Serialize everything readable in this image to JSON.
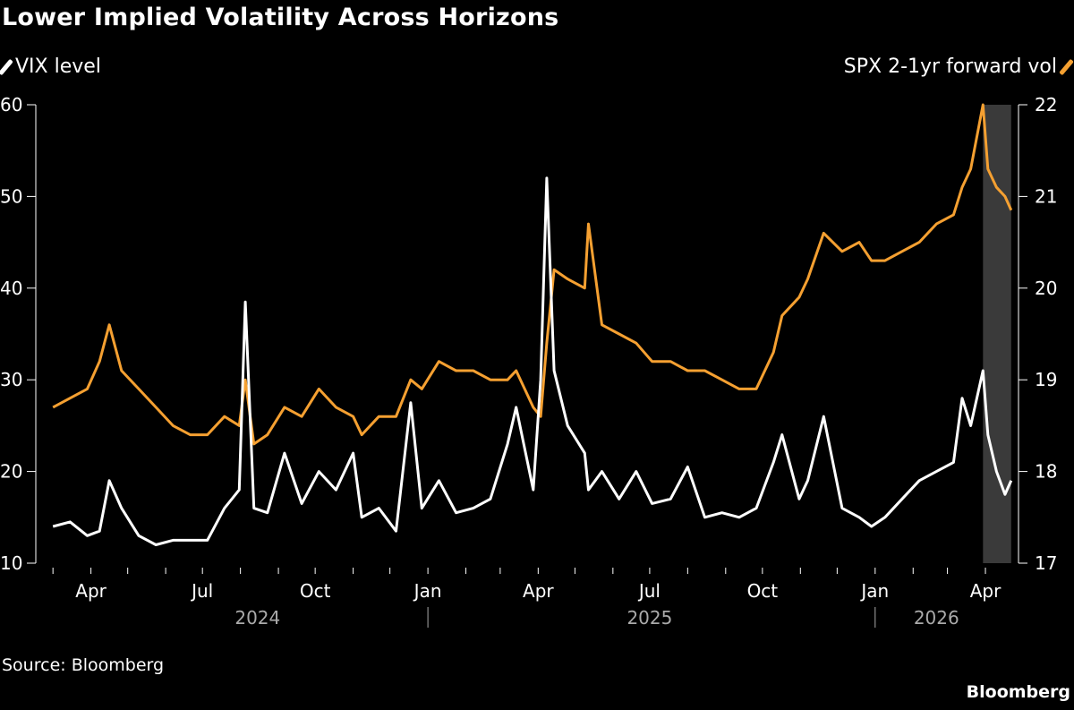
{
  "chart_data": {
    "type": "line",
    "title": "Lower Implied Volatility Across Horizons",
    "source": "Source: Bloomberg",
    "brand": "Bloomberg",
    "legend_placement": "top",
    "grid": false,
    "x_range": [
      "2024-02-16",
      "2026-04-28"
    ],
    "x_ticks": [
      {
        "date": "2024-04-01",
        "label": "Apr"
      },
      {
        "date": "2024-07-01",
        "label": "Jul"
      },
      {
        "date": "2024-10-01",
        "label": "Oct"
      },
      {
        "date": "2025-01-01",
        "label": "Jan"
      },
      {
        "date": "2025-04-01",
        "label": "Apr"
      },
      {
        "date": "2025-07-01",
        "label": "Jul"
      },
      {
        "date": "2025-10-01",
        "label": "Oct"
      },
      {
        "date": "2026-01-01",
        "label": "Jan"
      },
      {
        "date": "2026-04-01",
        "label": "Apr"
      }
    ],
    "year_labels": [
      {
        "date": "2024-08-15",
        "label": "2024"
      },
      {
        "date": "2025-07-01",
        "label": "2025"
      },
      {
        "date": "2026-02-20",
        "label": "2026"
      }
    ],
    "year_separators": [
      "2025-01-01",
      "2026-01-01"
    ],
    "shaded_region": [
      "2026-03-30",
      "2026-04-22"
    ],
    "shade_color": "#3a3a3a",
    "y_left": {
      "range": [
        10,
        60
      ],
      "ticks": [
        10,
        20,
        30,
        40,
        50,
        60
      ]
    },
    "y_right": {
      "range": [
        17,
        22
      ],
      "ticks": [
        17,
        18,
        19,
        20,
        21,
        22
      ]
    },
    "series": [
      {
        "name": "VIX level",
        "axis": "left",
        "color": "#ffffff"
      },
      {
        "name": "SPX 2-1yr forward vol",
        "axis": "right",
        "color": "#f5a031"
      }
    ],
    "points": [
      [
        "2024-03-01",
        14,
        18.7
      ],
      [
        "2024-03-15",
        14.5,
        18.8
      ],
      [
        "2024-03-29",
        13,
        18.9
      ],
      [
        "2024-04-08",
        13.5,
        19.2
      ],
      [
        "2024-04-16",
        19,
        19.6
      ],
      [
        "2024-04-26",
        16,
        19.1
      ],
      [
        "2024-05-10",
        13,
        18.9
      ],
      [
        "2024-05-24",
        12,
        18.7
      ],
      [
        "2024-06-07",
        12.5,
        18.5
      ],
      [
        "2024-06-21",
        12.5,
        18.4
      ],
      [
        "2024-07-05",
        12.5,
        18.4
      ],
      [
        "2024-07-19",
        16,
        18.6
      ],
      [
        "2024-07-31",
        18,
        18.5
      ],
      [
        "2024-08-05",
        38.5,
        19.0
      ],
      [
        "2024-08-12",
        16,
        18.3
      ],
      [
        "2024-08-23",
        15.5,
        18.4
      ],
      [
        "2024-09-06",
        22,
        18.7
      ],
      [
        "2024-09-20",
        16.5,
        18.6
      ],
      [
        "2024-10-04",
        20,
        18.9
      ],
      [
        "2024-10-18",
        18,
        18.7
      ],
      [
        "2024-11-01",
        22,
        18.6
      ],
      [
        "2024-11-08",
        15,
        18.4
      ],
      [
        "2024-11-22",
        16,
        18.6
      ],
      [
        "2024-12-06",
        13.5,
        18.6
      ],
      [
        "2024-12-18",
        27.5,
        19.0
      ],
      [
        "2024-12-27",
        16,
        18.9
      ],
      [
        "2025-01-10",
        19,
        19.2
      ],
      [
        "2025-01-24",
        15.5,
        19.1
      ],
      [
        "2025-02-07",
        16,
        19.1
      ],
      [
        "2025-02-21",
        17,
        19.0
      ],
      [
        "2025-03-07",
        23,
        19.0
      ],
      [
        "2025-03-14",
        27,
        19.1
      ],
      [
        "2025-03-28",
        18,
        18.7
      ],
      [
        "2025-04-03",
        30,
        18.6
      ],
      [
        "2025-04-08",
        52,
        19.4
      ],
      [
        "2025-04-14",
        31,
        20.2
      ],
      [
        "2025-04-25",
        25,
        20.1
      ],
      [
        "2025-05-09",
        22,
        20.0
      ],
      [
        "2025-05-12",
        18,
        20.7
      ],
      [
        "2025-05-23",
        20,
        19.6
      ],
      [
        "2025-06-06",
        17,
        19.5
      ],
      [
        "2025-06-20",
        20,
        19.4
      ],
      [
        "2025-07-03",
        16.5,
        19.2
      ],
      [
        "2025-07-18",
        17,
        19.2
      ],
      [
        "2025-08-01",
        20.5,
        19.1
      ],
      [
        "2025-08-15",
        15,
        19.1
      ],
      [
        "2025-08-29",
        15.5,
        19.0
      ],
      [
        "2025-09-12",
        15,
        18.9
      ],
      [
        "2025-09-26",
        16,
        18.9
      ],
      [
        "2025-10-10",
        21,
        19.3
      ],
      [
        "2025-10-17",
        24,
        19.7
      ],
      [
        "2025-10-31",
        17,
        19.9
      ],
      [
        "2025-11-07",
        19,
        20.1
      ],
      [
        "2025-11-20",
        26,
        20.6
      ],
      [
        "2025-12-05",
        16,
        20.4
      ],
      [
        "2025-12-19",
        15,
        20.5
      ],
      [
        "2025-12-29",
        14,
        20.3
      ],
      [
        "2026-01-09",
        15,
        20.3
      ],
      [
        "2026-01-23",
        17,
        20.4
      ],
      [
        "2026-02-06",
        19,
        20.5
      ],
      [
        "2026-02-20",
        20,
        20.7
      ],
      [
        "2026-03-06",
        21,
        20.8
      ],
      [
        "2026-03-13",
        28,
        21.1
      ],
      [
        "2026-03-20",
        25,
        21.3
      ],
      [
        "2026-03-30",
        31,
        22.0
      ],
      [
        "2026-04-03",
        24,
        21.3
      ],
      [
        "2026-04-10",
        20,
        21.1
      ],
      [
        "2026-04-17",
        17.5,
        21.0
      ],
      [
        "2026-04-22",
        19,
        20.85
      ]
    ]
  }
}
